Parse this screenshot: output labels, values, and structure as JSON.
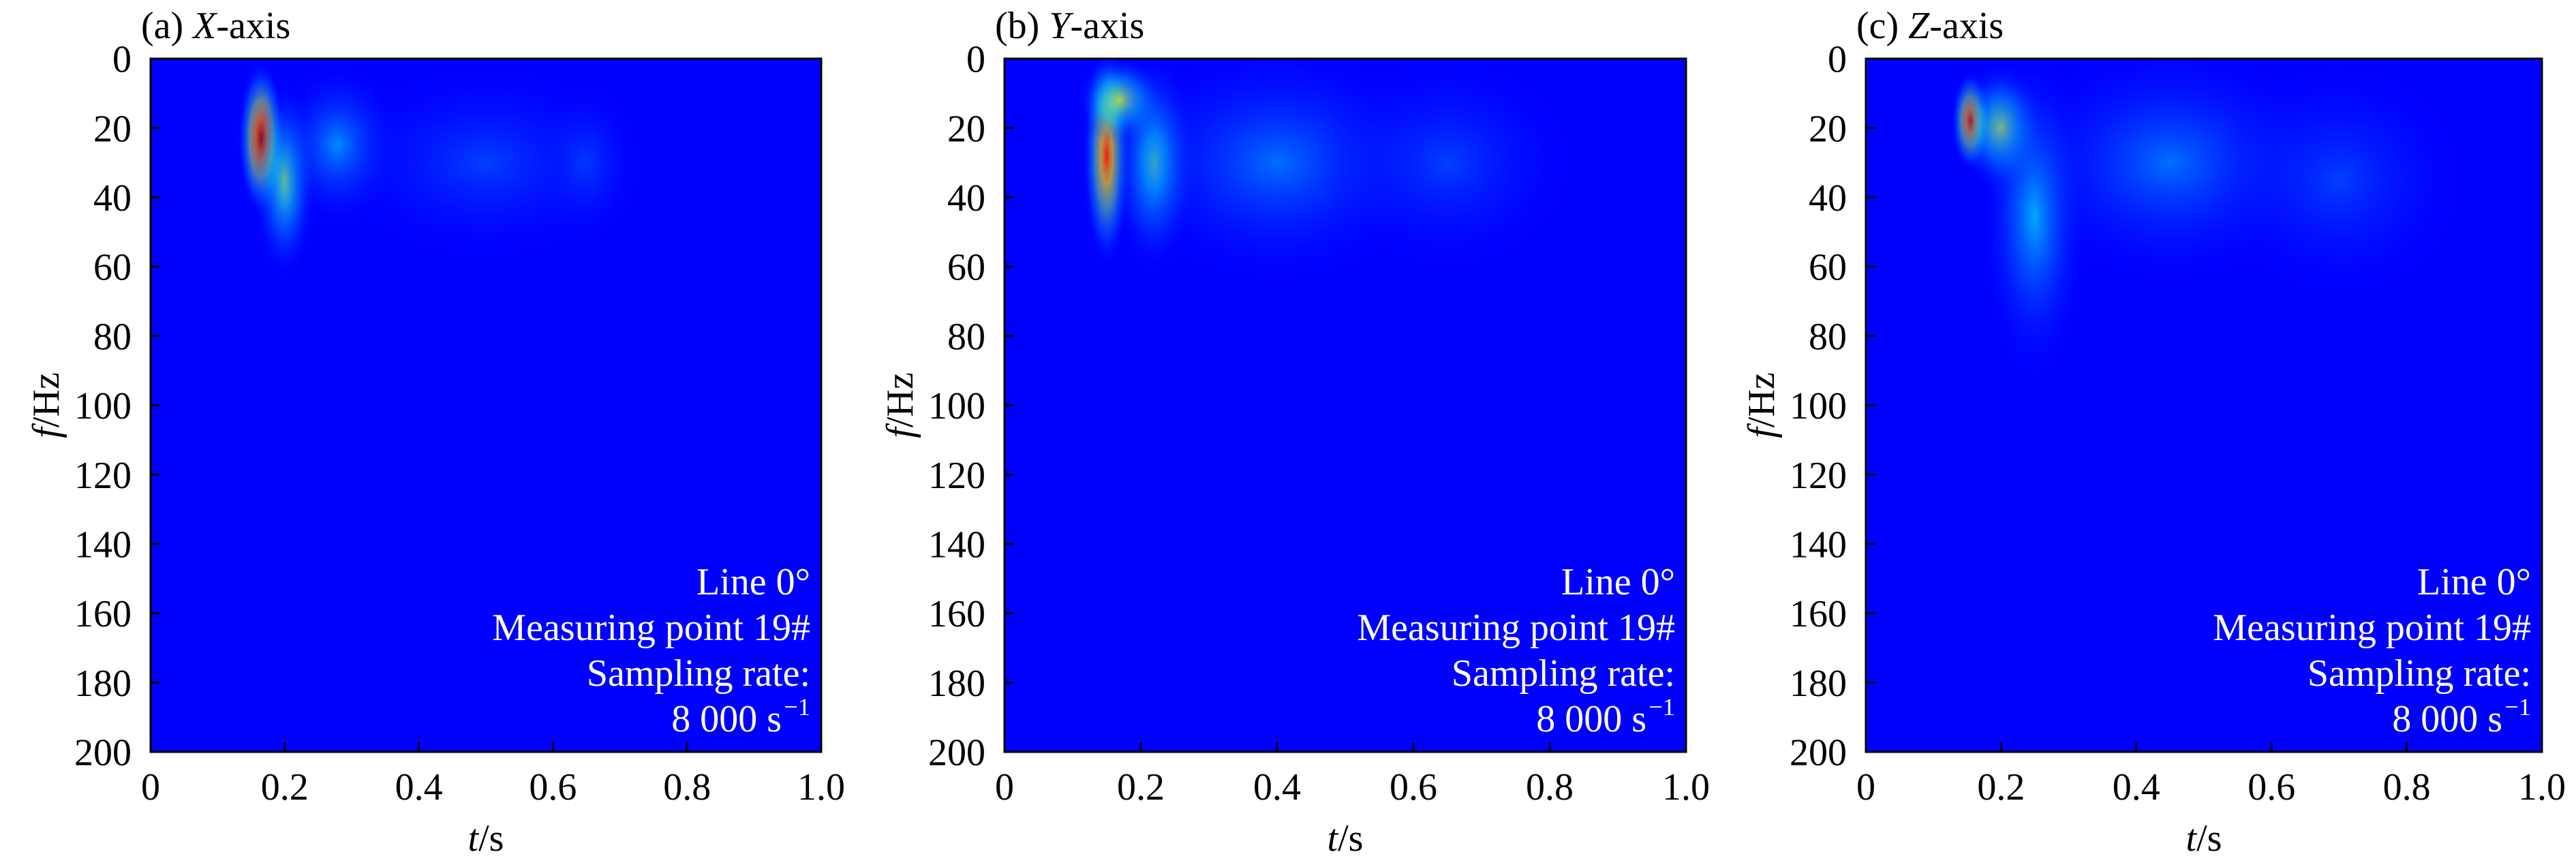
{
  "chart_data": [
    {
      "type": "heatmap",
      "panel_label": "(a) ",
      "axis_name": "X",
      "axis_suffix": "-axis",
      "xlabel_var": "t",
      "xlabel_unit": "/s",
      "ylabel_var": "f",
      "ylabel_unit": "/Hz",
      "xlim": [
        0,
        1.0
      ],
      "ylim": [
        0,
        200
      ],
      "x_ticks": [
        "0",
        "0.2",
        "0.4",
        "0.6",
        "0.8",
        "1.0"
      ],
      "y_ticks": [
        "0",
        "20",
        "40",
        "60",
        "80",
        "100",
        "120",
        "140",
        "160",
        "180",
        "200"
      ],
      "y_inverted": true,
      "colormap": "jet",
      "annotation": [
        "Line 0°",
        "Measuring point 19#",
        "Sampling rate:",
        "8 000 s"
      ],
      "annotation_superscript": "−1",
      "features": [
        {
          "t": 0.165,
          "f": 23,
          "intensity": 1.0,
          "spread_t": 0.022,
          "spread_f": 14
        },
        {
          "t": 0.2,
          "f": 35,
          "intensity": 0.45,
          "spread_t": 0.03,
          "spread_f": 18
        },
        {
          "t": 0.28,
          "f": 25,
          "intensity": 0.25,
          "spread_t": 0.06,
          "spread_f": 15
        },
        {
          "t": 0.5,
          "f": 30,
          "intensity": 0.12,
          "spread_t": 0.15,
          "spread_f": 18
        },
        {
          "t": 0.65,
          "f": 30,
          "intensity": 0.1,
          "spread_t": 0.05,
          "spread_f": 15
        }
      ]
    },
    {
      "type": "heatmap",
      "panel_label": "(b) ",
      "axis_name": "Y",
      "axis_suffix": "-axis",
      "xlabel_var": "t",
      "xlabel_unit": "/s",
      "ylabel_var": "f",
      "ylabel_unit": "/Hz",
      "xlim": [
        0,
        1.0
      ],
      "ylim": [
        0,
        200
      ],
      "x_ticks": [
        "0",
        "0.2",
        "0.4",
        "0.6",
        "0.8",
        "1.0"
      ],
      "y_ticks": [
        "0",
        "20",
        "40",
        "60",
        "80",
        "100",
        "120",
        "140",
        "160",
        "180",
        "200"
      ],
      "y_inverted": true,
      "colormap": "jet",
      "annotation": [
        "Line 0°",
        "Measuring point 19#",
        "Sampling rate:",
        "8 000 s"
      ],
      "annotation_superscript": "−1",
      "features": [
        {
          "t": 0.15,
          "f": 28,
          "intensity": 0.85,
          "spread_t": 0.022,
          "spread_f": 20
        },
        {
          "t": 0.17,
          "f": 12,
          "intensity": 0.55,
          "spread_t": 0.04,
          "spread_f": 8
        },
        {
          "t": 0.22,
          "f": 30,
          "intensity": 0.4,
          "spread_t": 0.04,
          "spread_f": 20
        },
        {
          "t": 0.4,
          "f": 30,
          "intensity": 0.2,
          "spread_t": 0.15,
          "spread_f": 22
        },
        {
          "t": 0.65,
          "f": 30,
          "intensity": 0.12,
          "spread_t": 0.12,
          "spread_f": 20
        }
      ]
    },
    {
      "type": "heatmap",
      "panel_label": "(c) ",
      "axis_name": "Z",
      "axis_suffix": "-axis",
      "xlabel_var": "t",
      "xlabel_unit": "/s",
      "ylabel_var": "f",
      "ylabel_unit": "/Hz",
      "xlim": [
        0,
        1.0
      ],
      "ylim": [
        0,
        200
      ],
      "x_ticks": [
        "0",
        "0.2",
        "0.4",
        "0.6",
        "0.8",
        "1.0"
      ],
      "y_ticks": [
        "0",
        "20",
        "40",
        "60",
        "80",
        "100",
        "120",
        "140",
        "160",
        "180",
        "200"
      ],
      "y_inverted": true,
      "colormap": "jet",
      "annotation": [
        "Line 0°",
        "Measuring point 19#",
        "Sampling rate:",
        "8 000 s"
      ],
      "annotation_superscript": "−1",
      "features": [
        {
          "t": 0.155,
          "f": 18,
          "intensity": 0.95,
          "spread_t": 0.018,
          "spread_f": 9
        },
        {
          "t": 0.2,
          "f": 20,
          "intensity": 0.5,
          "spread_t": 0.04,
          "spread_f": 12
        },
        {
          "t": 0.25,
          "f": 45,
          "intensity": 0.3,
          "spread_t": 0.05,
          "spread_f": 30
        },
        {
          "t": 0.45,
          "f": 30,
          "intensity": 0.2,
          "spread_t": 0.15,
          "spread_f": 22
        },
        {
          "t": 0.7,
          "f": 35,
          "intensity": 0.12,
          "spread_t": 0.12,
          "spread_f": 22
        }
      ]
    }
  ]
}
